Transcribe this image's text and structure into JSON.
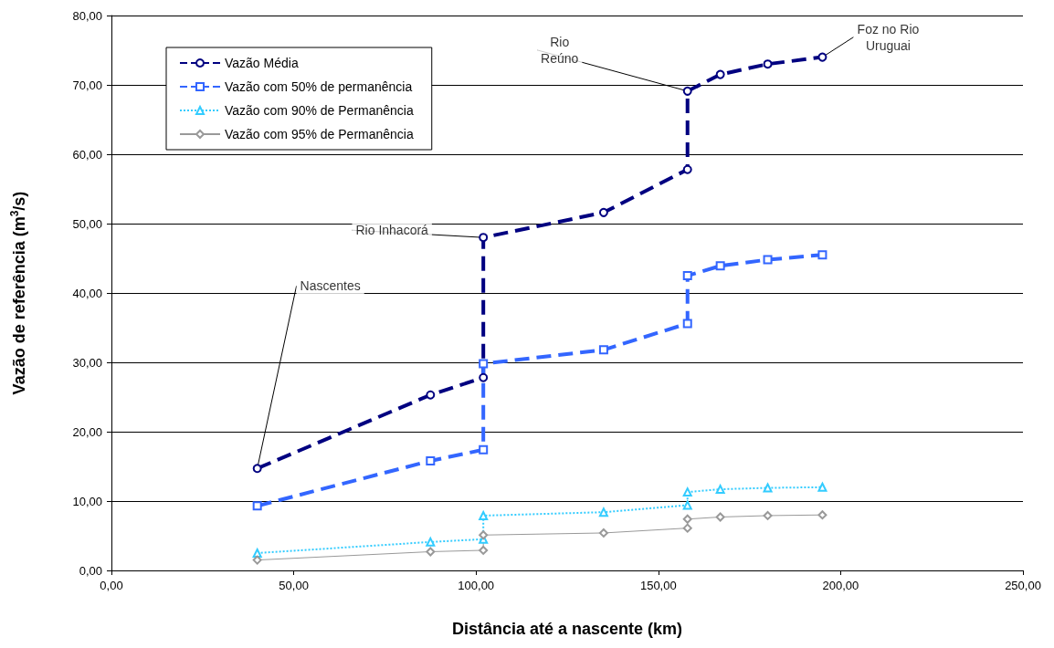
{
  "chart_data": {
    "type": "line",
    "xlabel": "Distância até a nascente (km)",
    "ylabel": "Vazão de referência (m$^{3}$/s)",
    "xlim": [
      0,
      250
    ],
    "xticks": [
      {
        "value": 0,
        "label": "0,00"
      },
      {
        "value": 50,
        "label": "50,00"
      },
      {
        "value": 100,
        "label": "100,00"
      },
      {
        "value": 150,
        "label": "150,00"
      },
      {
        "value": 200,
        "label": "200,00"
      },
      {
        "value": 250,
        "label": "250,00"
      }
    ],
    "ylim": [
      0,
      80
    ],
    "yticks": [
      {
        "value": 0,
        "label": "0,00"
      },
      {
        "value": 10,
        "label": "10,00"
      },
      {
        "value": 20,
        "label": "20,00"
      },
      {
        "value": 30,
        "label": "30,00"
      },
      {
        "value": 40,
        "label": "40,00"
      },
      {
        "value": 50,
        "label": "50,00"
      },
      {
        "value": 60,
        "label": "60,00"
      },
      {
        "value": 70,
        "label": "70,00"
      },
      {
        "value": 80,
        "label": "80,00"
      }
    ],
    "x": [
      40,
      87.5,
      102,
      102,
      135,
      158,
      158,
      167,
      180,
      195
    ],
    "grid": "y",
    "legend": "top left",
    "series": [
      {
        "name": "Vazão Média",
        "color": "#000080",
        "marker": "circle",
        "line_style": "dashed",
        "values": [
          14.7,
          25.3,
          27.8,
          48.0,
          51.6,
          57.8,
          69.1,
          71.5,
          73.0,
          74.0
        ]
      },
      {
        "name": "Vazão com 50% de permanência",
        "color": "#3366ff",
        "marker": "square",
        "line_style": "dashed",
        "values": [
          9.3,
          15.8,
          17.4,
          29.8,
          31.8,
          35.6,
          42.5,
          43.9,
          44.8,
          45.5
        ]
      },
      {
        "name": "Vazão com 90% de Permanência",
        "color": "#33ccff",
        "marker": "triangle",
        "line_style": "dotted",
        "values": [
          2.5,
          4.1,
          4.5,
          7.9,
          8.4,
          9.4,
          11.3,
          11.7,
          11.9,
          12.0
        ]
      },
      {
        "name": "Vazão com 95% de Permanência",
        "color": "#999999",
        "marker": "diamond",
        "line_style": "solid",
        "values": [
          1.5,
          2.7,
          2.9,
          5.1,
          5.4,
          6.1,
          7.4,
          7.7,
          7.9,
          8.0
        ]
      }
    ],
    "annotations": [
      {
        "text": "Nascentes",
        "x": 40,
        "y": 14.7
      },
      {
        "text": "Rio Inhacorá",
        "x": 102,
        "y": 48.0
      },
      {
        "text": "Rio\nReúno",
        "x": 158,
        "y": 69.1
      },
      {
        "text": "Foz no Rio\nUruguai",
        "x": 195,
        "y": 74.0
      }
    ]
  }
}
